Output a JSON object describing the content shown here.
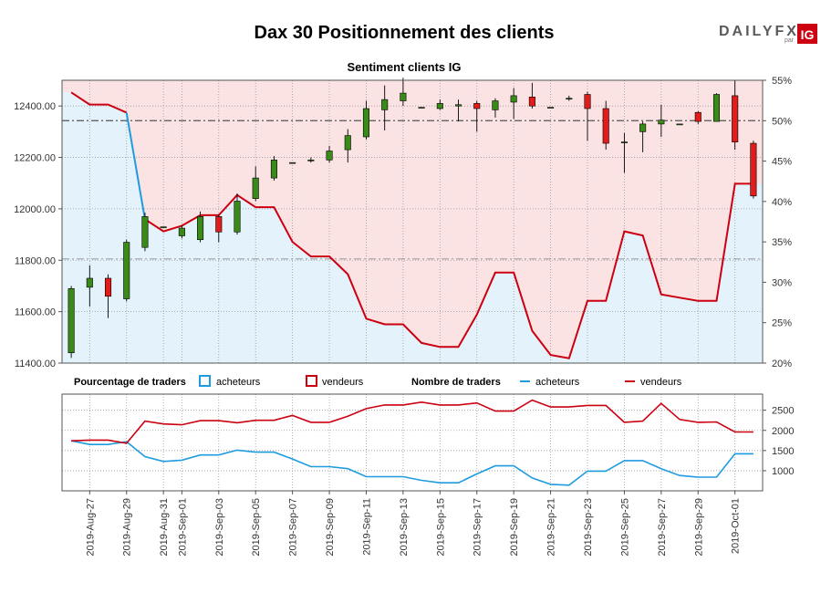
{
  "header": {
    "title": "Dax 30 Positionnement des clients",
    "subtitle": "Sentiment clients IG"
  },
  "logo": {
    "text_main": "DAILYFX",
    "text_par": "par",
    "text_ig": "IG"
  },
  "colors": {
    "buyers": "#1f9be0",
    "sellers": "#cc0011",
    "buyers_fill": "#e4f3fb",
    "sellers_fill": "#fbe3e3",
    "bull_candle": "#3a8a1a",
    "bear_candle": "#e21b1b",
    "grid": "#9a9a9a",
    "axis_frame": "#2a7a1a"
  },
  "legend": {
    "pct_label": "Pourcentage de traders",
    "pct_buyers": "acheteurs",
    "pct_sellers": "vendeurs",
    "count_label": "Nombre de traders",
    "count_buyers": "acheteurs",
    "count_sellers": "vendeurs"
  },
  "chart_data": [
    {
      "type": "candlestick",
      "title": "Sentiment clients IG",
      "x": [
        "2019-Aug-26",
        "2019-Aug-27",
        "2019-Aug-28",
        "2019-Aug-29",
        "2019-Aug-30",
        "2019-Aug-31",
        "2019-Sep-01",
        "2019-Sep-02",
        "2019-Sep-03",
        "2019-Sep-04",
        "2019-Sep-05",
        "2019-Sep-06",
        "2019-Sep-07",
        "2019-Sep-08",
        "2019-Sep-09",
        "2019-Sep-10",
        "2019-Sep-11",
        "2019-Sep-12",
        "2019-Sep-13",
        "2019-Sep-14",
        "2019-Sep-15",
        "2019-Sep-16",
        "2019-Sep-17",
        "2019-Sep-18",
        "2019-Sep-19",
        "2019-Sep-20",
        "2019-Sep-21",
        "2019-Sep-22",
        "2019-Sep-23",
        "2019-Sep-24",
        "2019-Sep-25",
        "2019-Sep-26",
        "2019-Sep-27",
        "2019-Sep-28",
        "2019-Sep-29",
        "2019-Sep-30",
        "2019-Oct-01",
        "2019-Oct-02"
      ],
      "x_tick_labels": [
        "2019-Aug-27",
        "2019-Aug-29",
        "2019-Aug-31",
        "2019-Sep-01",
        "2019-Sep-03",
        "2019-Sep-05",
        "2019-Sep-07",
        "2019-Sep-09",
        "2019-Sep-11",
        "2019-Sep-13",
        "2019-Sep-15",
        "2019-Sep-17",
        "2019-Sep-19",
        "2019-Sep-21",
        "2019-Sep-23",
        "2019-Sep-25",
        "2019-Sep-27",
        "2019-Sep-29",
        "2019-Oct-01"
      ],
      "x_tick_index": [
        1,
        3,
        5,
        6,
        8,
        10,
        12,
        14,
        16,
        18,
        20,
        22,
        24,
        26,
        28,
        30,
        32,
        34,
        36
      ],
      "candles": [
        {
          "o": 11440,
          "c": 11690,
          "h": 11700,
          "l": 11420
        },
        {
          "o": 11695,
          "c": 11730,
          "h": 11780,
          "l": 11620
        },
        {
          "o": 11730,
          "c": 11660,
          "h": 11745,
          "l": 11575
        },
        {
          "o": 11650,
          "c": 11870,
          "h": 11880,
          "l": 11640
        },
        {
          "o": 11850,
          "c": 11970,
          "h": 11985,
          "l": 11835
        },
        {
          "o": 11930,
          "c": 11930,
          "h": 11930,
          "l": 11930
        },
        {
          "o": 11895,
          "c": 11925,
          "h": 11935,
          "l": 11885
        },
        {
          "o": 11880,
          "c": 11970,
          "h": 11990,
          "l": 11870
        },
        {
          "o": 11970,
          "c": 11910,
          "h": 11980,
          "l": 11870
        },
        {
          "o": 11910,
          "c": 12030,
          "h": 12060,
          "l": 11900
        },
        {
          "o": 12040,
          "c": 12120,
          "h": 12165,
          "l": 12030
        },
        {
          "o": 12120,
          "c": 12190,
          "h": 12205,
          "l": 12110
        },
        {
          "o": 12180,
          "c": 12180,
          "h": 12180,
          "l": 12180
        },
        {
          "o": 12190,
          "c": 12190,
          "h": 12200,
          "l": 12180
        },
        {
          "o": 12190,
          "c": 12225,
          "h": 12245,
          "l": 12180
        },
        {
          "o": 12230,
          "c": 12285,
          "h": 12310,
          "l": 12180
        },
        {
          "o": 12280,
          "c": 12390,
          "h": 12420,
          "l": 12270
        },
        {
          "o": 12385,
          "c": 12425,
          "h": 12480,
          "l": 12305
        },
        {
          "o": 12420,
          "c": 12450,
          "h": 12510,
          "l": 12400
        },
        {
          "o": 12395,
          "c": 12395,
          "h": 12395,
          "l": 12395
        },
        {
          "o": 12390,
          "c": 12410,
          "h": 12425,
          "l": 12385
        },
        {
          "o": 12400,
          "c": 12405,
          "h": 12425,
          "l": 12340
        },
        {
          "o": 12410,
          "c": 12390,
          "h": 12420,
          "l": 12300
        },
        {
          "o": 12385,
          "c": 12420,
          "h": 12430,
          "l": 12355
        },
        {
          "o": 12415,
          "c": 12440,
          "h": 12470,
          "l": 12350
        },
        {
          "o": 12435,
          "c": 12400,
          "h": 12490,
          "l": 12390
        },
        {
          "o": 12395,
          "c": 12395,
          "h": 12395,
          "l": 12395
        },
        {
          "o": 12430,
          "c": 12430,
          "h": 12440,
          "l": 12420
        },
        {
          "o": 12445,
          "c": 12390,
          "h": 12455,
          "l": 12265
        },
        {
          "o": 12390,
          "c": 12255,
          "h": 12420,
          "l": 12230
        },
        {
          "o": 12260,
          "c": 12260,
          "h": 12295,
          "l": 12140
        },
        {
          "o": 12300,
          "c": 12330,
          "h": 12340,
          "l": 12220
        },
        {
          "o": 12330,
          "c": 12345,
          "h": 12405,
          "l": 12280
        },
        {
          "o": 12330,
          "c": 12330,
          "h": 12330,
          "l": 12330
        },
        {
          "o": 12375,
          "c": 12340,
          "h": 12380,
          "l": 12330
        },
        {
          "o": 12340,
          "c": 12445,
          "h": 12450,
          "l": 12340
        },
        {
          "o": 12440,
          "c": 12260,
          "h": 12500,
          "l": 12230
        },
        {
          "o": 12255,
          "c": 12050,
          "h": 12265,
          "l": 12040
        }
      ],
      "ylim_price": [
        11400,
        12500
      ],
      "y_price_ticks": [
        "11400.00",
        "11600.00",
        "11800.00",
        "12000.00",
        "12200.00",
        "12400.00"
      ],
      "y_price_tick_values": [
        11400,
        11600,
        11800,
        12000,
        12200,
        12400
      ],
      "ylim_pct": [
        20,
        55
      ],
      "y_pct_ticks": [
        "20%",
        "25%",
        "30%",
        "35%",
        "40%",
        "45%",
        "50%",
        "55%"
      ],
      "y_pct_tick_values": [
        20,
        25,
        30,
        35,
        40,
        45,
        50,
        55
      ],
      "buyers_pct": [
        53.5,
        52.0,
        52.0,
        51.0,
        37.8,
        36.3,
        37.0,
        38.3,
        38.3,
        40.8,
        39.3,
        39.3,
        35.0,
        33.2,
        33.2,
        31.0,
        25.5,
        24.8,
        24.8,
        22.5,
        22.0,
        22.0,
        26.0,
        31.2,
        31.2,
        24.0,
        21.0,
        20.6,
        27.7,
        27.7,
        36.3,
        35.8,
        28.5,
        28.1,
        27.7,
        27.7,
        42.2,
        42.2
      ],
      "reference_line_pct": 50,
      "reference_line_price": 11805,
      "grid": true
    },
    {
      "type": "line",
      "title": "Nombre de traders",
      "series": [
        {
          "name": "acheteurs",
          "values": [
            1740,
            1650,
            1650,
            1720,
            1350,
            1230,
            1260,
            1390,
            1390,
            1510,
            1460,
            1460,
            1290,
            1100,
            1100,
            1050,
            850,
            850,
            850,
            760,
            700,
            700,
            920,
            1120,
            1120,
            820,
            660,
            640,
            990,
            990,
            1250,
            1250,
            1050,
            880,
            840,
            840,
            1420,
            1420
          ]
        },
        {
          "name": "vendeurs",
          "values": [
            1740,
            1760,
            1760,
            1680,
            2230,
            2160,
            2140,
            2240,
            2240,
            2190,
            2250,
            2250,
            2370,
            2200,
            2200,
            2350,
            2540,
            2630,
            2630,
            2700,
            2630,
            2630,
            2680,
            2480,
            2480,
            2750,
            2580,
            2580,
            2620,
            2620,
            2200,
            2230,
            2670,
            2270,
            2200,
            2210,
            1960,
            1960
          ]
        }
      ],
      "ylim": [
        500,
        2900
      ],
      "y_ticks": [
        "1000",
        "1500",
        "2000",
        "2500"
      ],
      "y_tick_values": [
        1000,
        1500,
        2000,
        2500
      ],
      "grid": true
    }
  ]
}
